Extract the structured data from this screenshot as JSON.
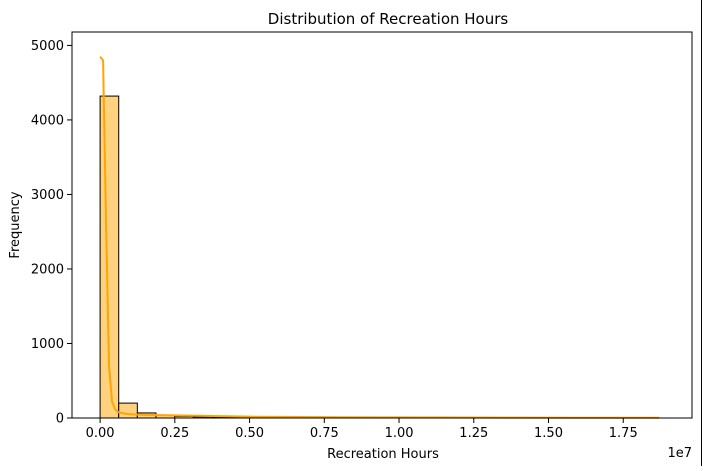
{
  "chart_data": {
    "type": "bar",
    "title": "Distribution of Recreation Hours",
    "xlabel": "Recreation Hours",
    "ylabel": "Frequency",
    "x_offset_label": "1e7",
    "x_scale_note": "x values in units of 1e7 recreation hours",
    "xlim": [
      -0.094,
      1.98
    ],
    "ylim": [
      0,
      5180
    ],
    "x_ticks": [
      0,
      0.25,
      0.5,
      0.75,
      1.0,
      1.25,
      1.5,
      1.75
    ],
    "x_tick_labels": [
      "0.00",
      "0.25",
      "0.50",
      "0.75",
      "1.00",
      "1.25",
      "1.50",
      "1.75"
    ],
    "y_ticks": [
      0,
      1000,
      2000,
      3000,
      4000,
      5000
    ],
    "y_tick_labels": [
      "0",
      "1000",
      "2000",
      "3000",
      "4000",
      "5000"
    ],
    "grid": false,
    "bin_start": 0.0,
    "bin_width": 0.0623,
    "values": [
      4320,
      200,
      68,
      38,
      22,
      15,
      10,
      7,
      5,
      4,
      3,
      3,
      2,
      2,
      2,
      1,
      1,
      1,
      1,
      1,
      1,
      1,
      1,
      1,
      1,
      1,
      1,
      1,
      1,
      1
    ],
    "kde": {
      "x": [
        0.0,
        0.01,
        0.02,
        0.03,
        0.04,
        0.05,
        0.06,
        0.08,
        0.1,
        0.15,
        0.2,
        0.3,
        0.4,
        0.5,
        0.6,
        0.8,
        1.0,
        1.2,
        1.4,
        1.6,
        1.8,
        1.87
      ],
      "y": [
        4850,
        4800,
        2600,
        700,
        220,
        120,
        80,
        60,
        50,
        42,
        38,
        32,
        25,
        18,
        15,
        10,
        8,
        6,
        5,
        4,
        3,
        3
      ]
    },
    "colors": {
      "bar_fill": "#FFD280",
      "bar_edge": "#000000",
      "kde_line": "#FFA500"
    }
  }
}
